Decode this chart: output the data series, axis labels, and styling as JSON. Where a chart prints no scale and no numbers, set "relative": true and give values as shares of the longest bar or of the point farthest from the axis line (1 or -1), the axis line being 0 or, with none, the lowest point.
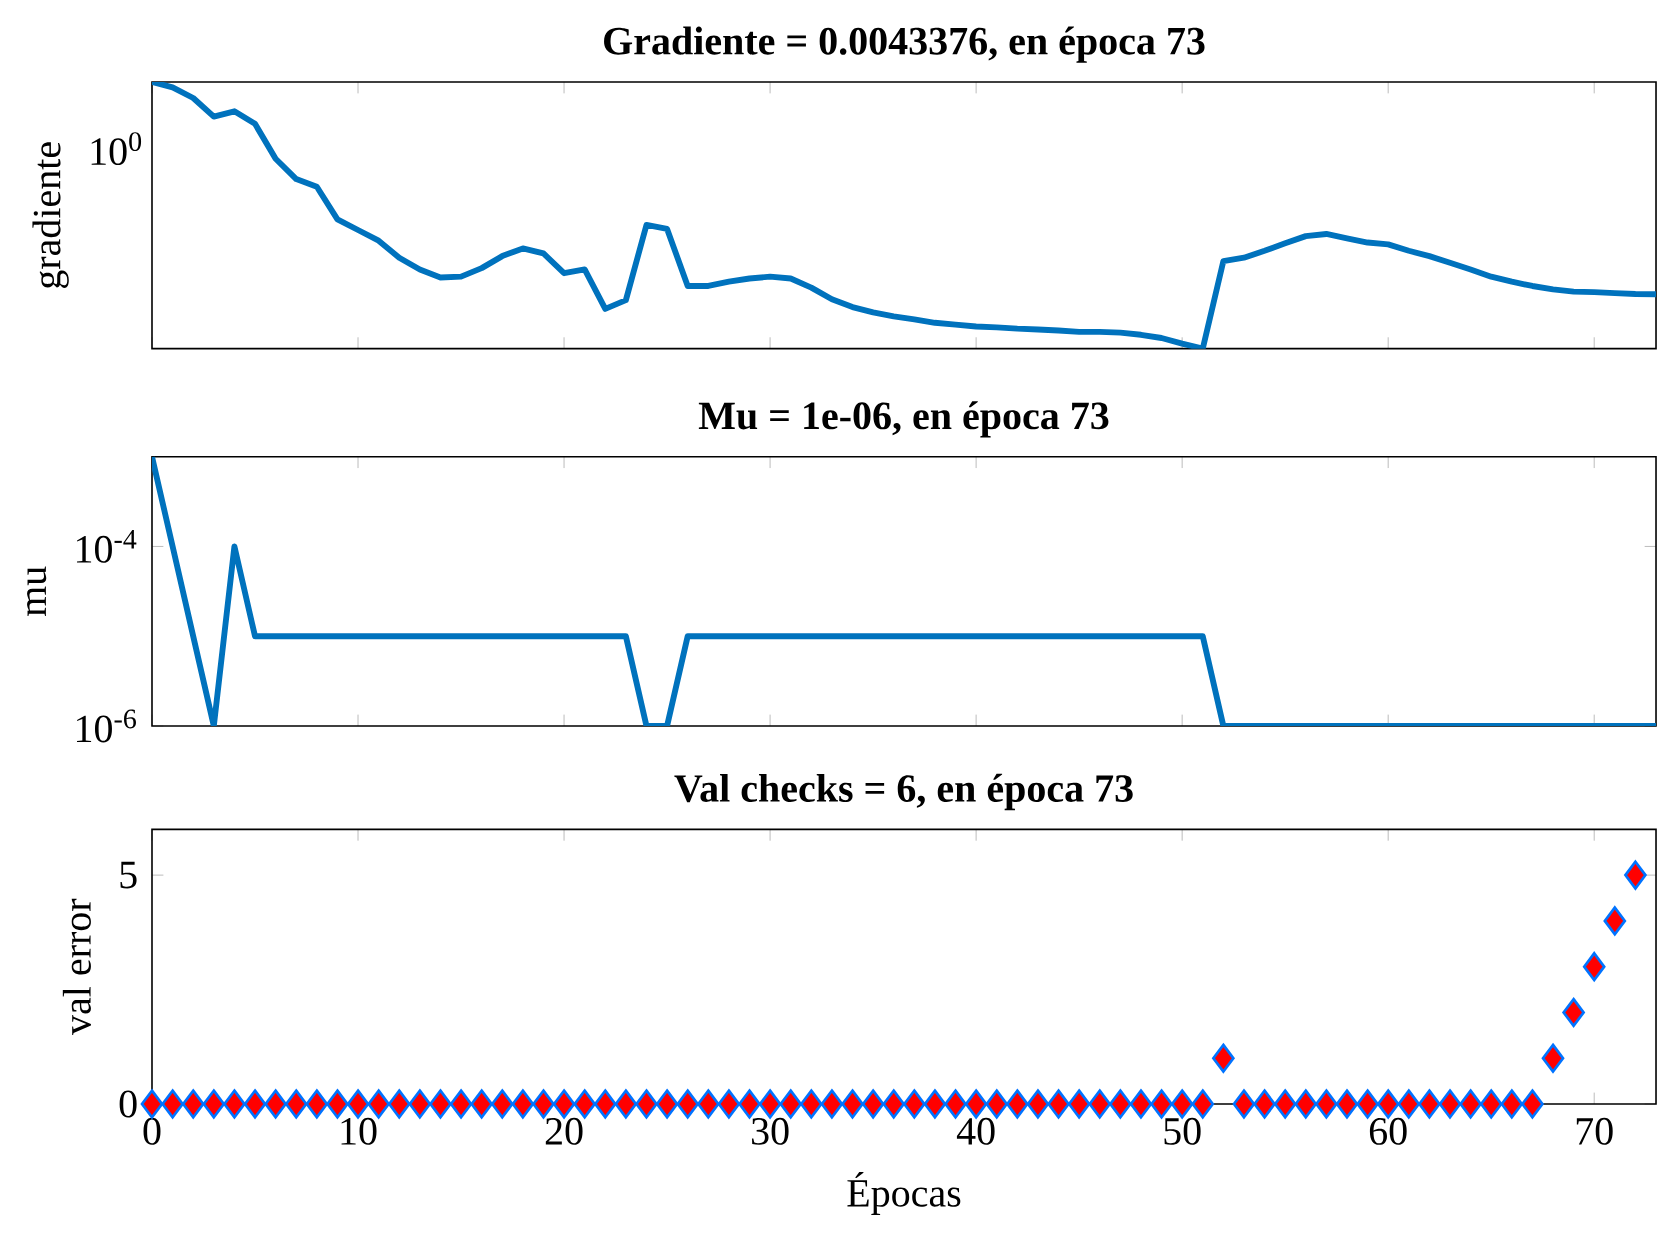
{
  "chart_data": [
    {
      "type": "line",
      "title": "Gradiente = 0.0043376, en época 73",
      "ylabel": "gradiente",
      "relative": true,
      "tick_labels": "y",
      "xlim": [
        0,
        73
      ],
      "xticks": [
        0,
        10,
        20,
        30,
        40,
        50,
        60,
        70
      ],
      "annotations": [
        "10$^{0}$"
      ],
      "series": [
        {
          "color": "#0072bd",
          "x": [
            0,
            1,
            2,
            3,
            4,
            5,
            6,
            7,
            8,
            9,
            10,
            11,
            12,
            13,
            14,
            15,
            16,
            17,
            18,
            19,
            20,
            21,
            22,
            23,
            24,
            25,
            26,
            27,
            28,
            29,
            30,
            31,
            32,
            33,
            34,
            35,
            36,
            37,
            38,
            39,
            40,
            41,
            42,
            43,
            44,
            45,
            46,
            47,
            48,
            49,
            50,
            51,
            52,
            53,
            54,
            55,
            56,
            57,
            58,
            59,
            60,
            61,
            62,
            63,
            64,
            65,
            66,
            67,
            68,
            69,
            70,
            71,
            72,
            73
          ],
          "values": [
            1.0,
            0.98,
            0.94,
            0.87,
            0.89,
            0.843,
            0.712,
            0.636,
            0.607,
            0.485,
            0.445,
            0.405,
            0.341,
            0.297,
            0.267,
            0.27,
            0.302,
            0.347,
            0.376,
            0.357,
            0.283,
            0.297,
            0.149,
            0.182,
            0.464,
            0.449,
            0.235,
            0.235,
            0.251,
            0.263,
            0.27,
            0.263,
            0.229,
            0.185,
            0.156,
            0.136,
            0.121,
            0.11,
            0.097,
            0.09,
            0.083,
            0.08,
            0.075,
            0.072,
            0.068,
            0.063,
            0.063,
            0.06,
            0.052,
            0.04,
            0.019,
            0.0,
            0.328,
            0.341,
            0.367,
            0.395,
            0.422,
            0.43,
            0.414,
            0.398,
            0.391,
            0.367,
            0.347,
            0.322,
            0.297,
            0.27,
            0.251,
            0.235,
            0.222,
            0.214,
            0.212,
            0.208,
            0.205,
            0.204
          ]
        }
      ]
    },
    {
      "type": "line",
      "title": "Mu = 1e-06, en época 73",
      "ylabel": "mu",
      "log": "y",
      "tick_labels": "y",
      "xlim": [
        0,
        73
      ],
      "xticks": [
        0,
        10,
        20,
        30,
        40,
        50,
        60,
        70
      ],
      "ylim": [
        1e-06,
        0.001
      ],
      "yticks": [
        {
          "value": 1e-06,
          "label": "10$^{-6}$"
        },
        {
          "value": 0.0001,
          "label": "10$^{-4}$"
        }
      ],
      "series": [
        {
          "color": "#0072bd",
          "x": [
            0,
            1,
            2,
            3,
            4,
            5,
            23,
            24,
            25,
            26,
            51,
            52,
            73
          ],
          "values": [
            0.001,
            0.0001,
            1e-05,
            1e-06,
            0.0001,
            1e-05,
            1e-05,
            1e-06,
            1e-06,
            1e-05,
            1e-05,
            1e-06,
            1e-06
          ]
        }
      ]
    },
    {
      "type": "scatter",
      "title": "Val checks = 6, en época 73",
      "ylabel": "val error",
      "xlabel": "Épocas",
      "marker": "diamond",
      "xlim": [
        0,
        73
      ],
      "xticks": [
        0,
        10,
        20,
        30,
        40,
        50,
        60,
        70
      ],
      "ylim": [
        0,
        6
      ],
      "yticks": [
        0,
        5
      ],
      "series": [
        {
          "color": "#ff0000",
          "x": [
            0,
            1,
            2,
            3,
            4,
            5,
            6,
            7,
            8,
            9,
            10,
            11,
            12,
            13,
            14,
            15,
            16,
            17,
            18,
            19,
            20,
            21,
            22,
            23,
            24,
            25,
            26,
            27,
            28,
            29,
            30,
            31,
            32,
            33,
            34,
            35,
            36,
            37,
            38,
            39,
            40,
            41,
            42,
            43,
            44,
            45,
            46,
            47,
            48,
            49,
            50,
            51,
            52,
            53,
            54,
            55,
            56,
            57,
            58,
            59,
            60,
            61,
            62,
            63,
            64,
            65,
            66,
            67,
            68,
            69,
            70,
            71,
            72
          ],
          "values": [
            0,
            0,
            0,
            0,
            0,
            0,
            0,
            0,
            0,
            0,
            0,
            0,
            0,
            0,
            0,
            0,
            0,
            0,
            0,
            0,
            0,
            0,
            0,
            0,
            0,
            0,
            0,
            0,
            0,
            0,
            0,
            0,
            0,
            0,
            0,
            0,
            0,
            0,
            0,
            0,
            0,
            0,
            0,
            0,
            0,
            0,
            0,
            0,
            0,
            0,
            0,
            0,
            1,
            0,
            0,
            0,
            0,
            0,
            0,
            0,
            0,
            0,
            0,
            0,
            0,
            0,
            0,
            0,
            1,
            2,
            3,
            4,
            5
          ]
        }
      ]
    }
  ]
}
